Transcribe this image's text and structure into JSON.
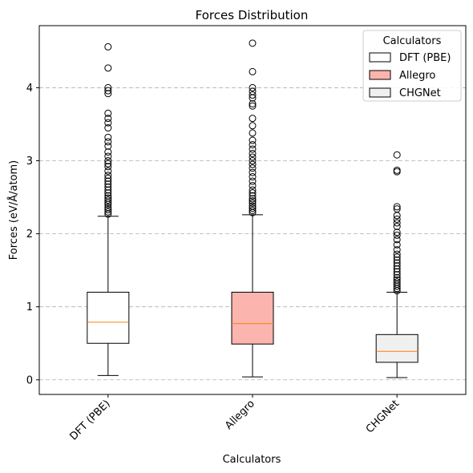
{
  "chart_data": {
    "type": "box",
    "title": "Forces Distribution",
    "xlabel": "Calculators",
    "ylabel": "Forces (eV/Å/atom)",
    "ylim": [
      -0.2,
      4.85
    ],
    "yticks": [
      0,
      1,
      2,
      3,
      4
    ],
    "grid": "y-dashed",
    "legend": {
      "title": "Calculators",
      "placement": "top-right"
    },
    "colors": {
      "median": "#ff7f0e",
      "grid": "#b0b0b0"
    },
    "series": [
      {
        "name": "DFT (PBE)",
        "color": "#ffffff",
        "whisker_low": 0.06,
        "q1": 0.5,
        "median": 0.79,
        "q3": 1.2,
        "whisker_high": 2.24,
        "outliers": [
          2.27,
          2.3,
          2.33,
          2.36,
          2.4,
          2.43,
          2.46,
          2.49,
          2.52,
          2.56,
          2.6,
          2.64,
          2.68,
          2.72,
          2.76,
          2.8,
          2.86,
          2.92,
          2.96,
          3.0,
          3.06,
          3.12,
          3.2,
          3.26,
          3.32,
          3.45,
          3.52,
          3.58,
          3.65,
          3.92,
          3.96,
          4.0,
          4.27,
          4.56
        ]
      },
      {
        "name": "Allegro",
        "color": "#fbb4ae",
        "whisker_low": 0.04,
        "q1": 0.49,
        "median": 0.77,
        "q3": 1.2,
        "whisker_high": 2.26,
        "outliers": [
          2.29,
          2.32,
          2.35,
          2.38,
          2.42,
          2.45,
          2.48,
          2.52,
          2.56,
          2.6,
          2.66,
          2.72,
          2.78,
          2.84,
          2.9,
          2.95,
          3.0,
          3.05,
          3.1,
          3.16,
          3.22,
          3.28,
          3.38,
          3.48,
          3.58,
          3.75,
          3.78,
          3.86,
          3.9,
          3.95,
          4.0,
          4.22,
          4.61
        ]
      },
      {
        "name": "CHGNet",
        "color": "#f0f0f0",
        "whisker_low": 0.03,
        "q1": 0.24,
        "median": 0.39,
        "q3": 0.62,
        "whisker_high": 1.2,
        "outliers": [
          1.22,
          1.25,
          1.28,
          1.31,
          1.34,
          1.37,
          1.4,
          1.44,
          1.48,
          1.52,
          1.56,
          1.6,
          1.64,
          1.68,
          1.72,
          1.78,
          1.85,
          1.92,
          1.98,
          2.02,
          2.1,
          2.15,
          2.2,
          2.25,
          2.34,
          2.37,
          2.85,
          2.87,
          3.08
        ]
      }
    ]
  }
}
